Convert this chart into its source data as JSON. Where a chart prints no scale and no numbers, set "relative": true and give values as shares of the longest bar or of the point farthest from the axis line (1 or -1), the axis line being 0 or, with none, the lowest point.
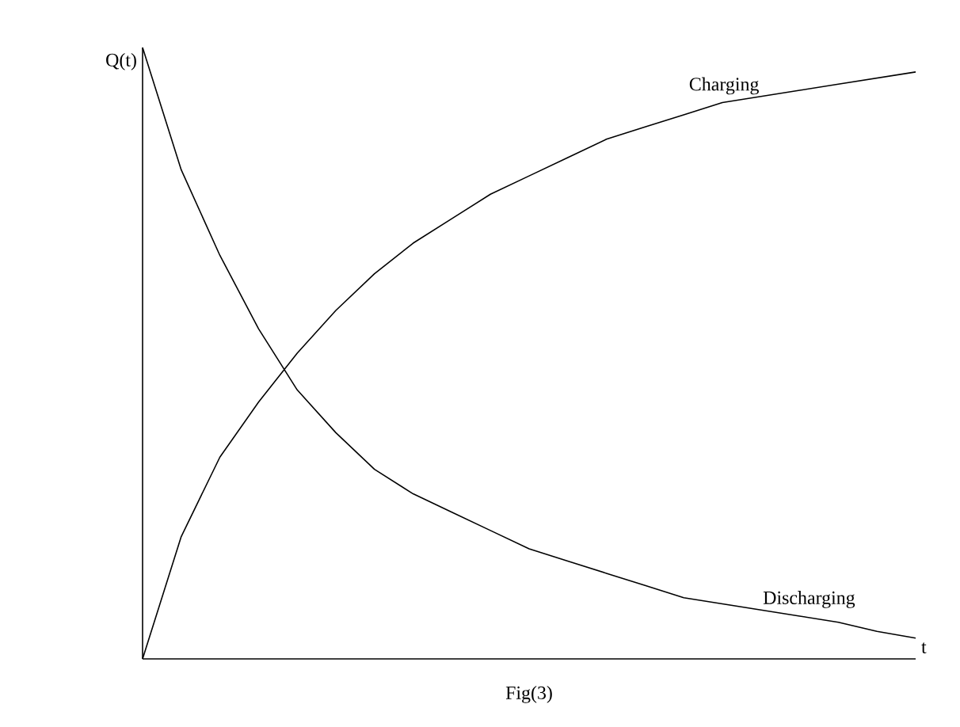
{
  "chart_data": {
    "type": "line",
    "relative": true,
    "xlabel": "t",
    "ylabel": "Q(t)",
    "categories": [
      null,
      null,
      null,
      null,
      null,
      null,
      null,
      null,
      null,
      null,
      null,
      null,
      null,
      null,
      null,
      null,
      null,
      null,
      null,
      null,
      null
    ],
    "series": [
      {
        "name": "Charging",
        "color": "#000000",
        "values": [
          0,
          0.2,
          0.33,
          0.42,
          0.5,
          0.57,
          0.63,
          0.68,
          0.72,
          0.76,
          0.79,
          0.82,
          0.85,
          0.87,
          0.89,
          0.91,
          0.92,
          0.93,
          0.94,
          0.95,
          0.96
        ]
      },
      {
        "name": "Discharging",
        "color": "#000000",
        "values": [
          1.0,
          0.8,
          0.66,
          0.54,
          0.44,
          0.37,
          0.31,
          0.27,
          0.24,
          0.21,
          0.18,
          0.16,
          0.14,
          0.12,
          0.1,
          0.09,
          0.08,
          0.07,
          0.06,
          0.045,
          0.034
        ]
      }
    ],
    "annotations": [
      "Fig(3)"
    ],
    "marker": "none",
    "line_style": "solid"
  }
}
